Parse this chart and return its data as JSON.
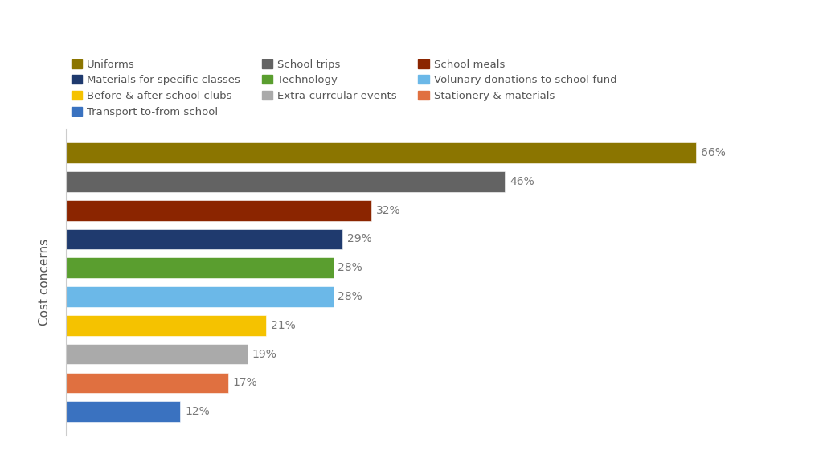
{
  "categories": [
    "Uniforms",
    "School trips",
    "School meals",
    "Materials for specific classes",
    "Technology",
    "Volunary donations to school fund",
    "Before & after school clubs",
    "Extra-currcular events",
    "Stationery & materials",
    "Transport to-from school"
  ],
  "values": [
    66,
    46,
    32,
    29,
    28,
    28,
    21,
    19,
    17,
    12
  ],
  "colors": [
    "#8B7500",
    "#636363",
    "#8B2500",
    "#1F3A6E",
    "#5A9E2F",
    "#6BB8E8",
    "#F5C200",
    "#AAAAAA",
    "#E07040",
    "#3A72C0"
  ],
  "ylabel": "Cost concerns",
  "background_color": "#ffffff",
  "label_fontsize": 10,
  "legend_order": [
    "Uniforms",
    "Materials for specific classes",
    "Before & after school clubs",
    "Transport to-from school",
    "School trips",
    "Technology",
    "Extra-currcular events",
    "School meals",
    "Volunary donations to school fund",
    "Stationery & materials"
  ],
  "legend_colors": [
    "#8B7500",
    "#1F3A6E",
    "#F5C200",
    "#3A72C0",
    "#636363",
    "#5A9E2F",
    "#AAAAAA",
    "#8B2500",
    "#6BB8E8",
    "#E07040"
  ]
}
